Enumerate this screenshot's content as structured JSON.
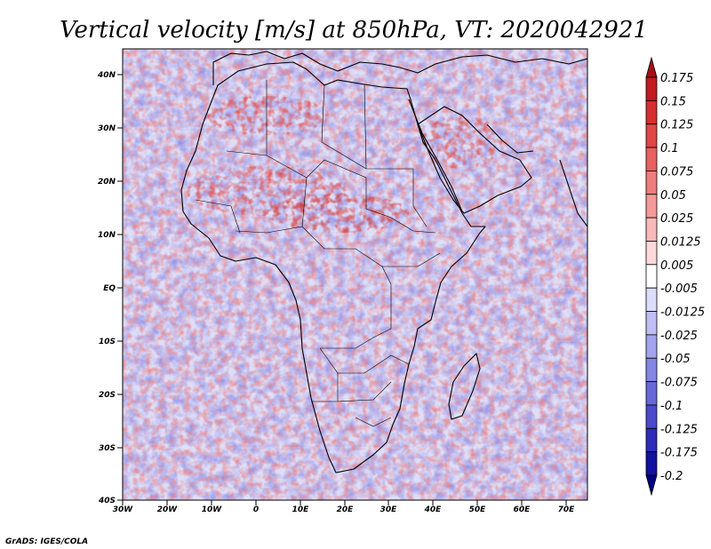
{
  "title": "Vertical velocity [m/s] at 850hPa, VT: 2020042921",
  "credit": "GrADS: IGES/COLA",
  "map": {
    "region": "Africa",
    "lon_range": [
      -30,
      75
    ],
    "lat_range": [
      -40,
      45
    ],
    "lat_ticks": [
      "40N",
      "30N",
      "20N",
      "10N",
      "EQ",
      "10S",
      "20S",
      "30S",
      "40S"
    ],
    "lat_values": [
      40,
      30,
      20,
      10,
      0,
      -10,
      -20,
      -30,
      -40
    ],
    "lon_ticks": [
      "30W",
      "20W",
      "10W",
      "0",
      "10E",
      "20E",
      "30E",
      "40E",
      "50E",
      "60E",
      "70E"
    ],
    "lon_values": [
      -30,
      -20,
      -10,
      0,
      10,
      20,
      30,
      40,
      50,
      60,
      70
    ]
  },
  "colorbar": {
    "labels": [
      "0.175",
      "0.15",
      "0.125",
      "0.1",
      "0.075",
      "0.05",
      "0.025",
      "0.0125",
      "0.005",
      "-0.005",
      "-0.0125",
      "-0.025",
      "-0.05",
      "-0.075",
      "-0.1",
      "-0.125",
      "-0.175",
      "-0.2"
    ],
    "colors": [
      "#a50f15",
      "#c21b1f",
      "#d62f2f",
      "#e04646",
      "#e86060",
      "#ef7c7c",
      "#f59a9a",
      "#fab9b9",
      "#fdd9d9",
      "#ffffff",
      "#dcdcfb",
      "#bfbff5",
      "#a3a3ee",
      "#8585e4",
      "#6767d8",
      "#4a4acb",
      "#2c2cb8",
      "#1212a0",
      "#000080"
    ]
  }
}
